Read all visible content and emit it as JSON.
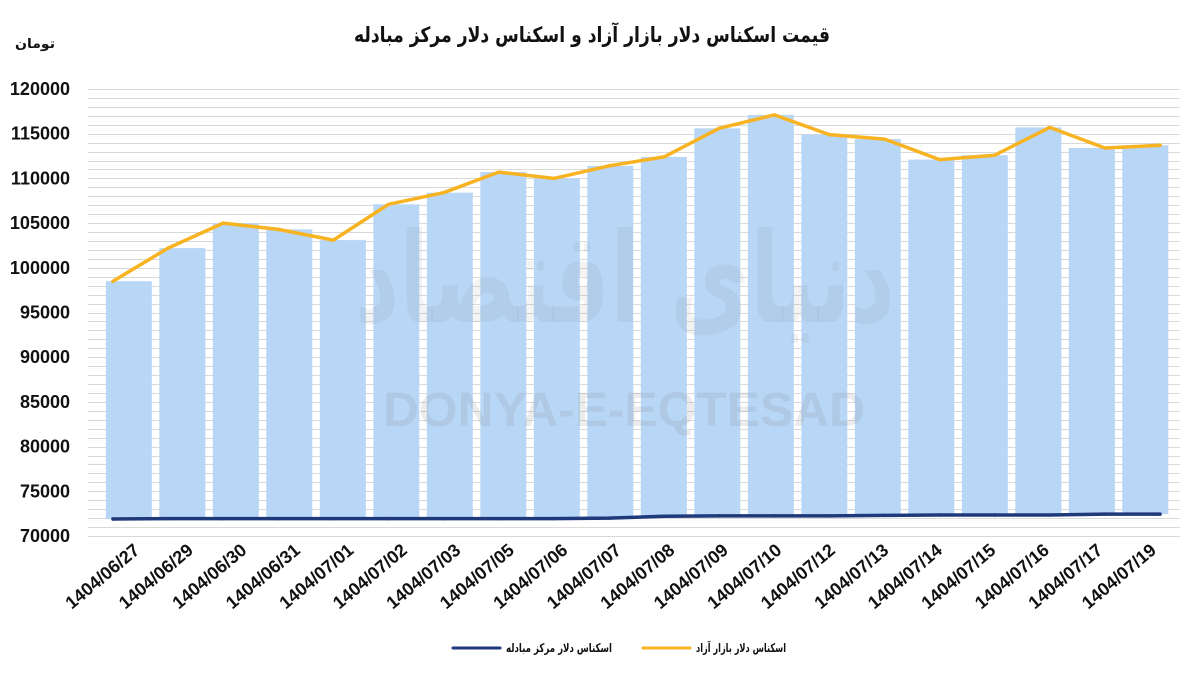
{
  "chart_data": {
    "type": "bar",
    "title": "قیمت اسکناس دلار بازار آزاد و اسکناس دلار مرکز مبادله",
    "ylabel": "تومان",
    "categories": [
      "1404/06/27",
      "1404/06/29",
      "1404/06/30",
      "1404/06/31",
      "1404/07/01",
      "1404/07/02",
      "1404/07/03",
      "1404/07/05",
      "1404/07/06",
      "1404/07/07",
      "1404/07/08",
      "1404/07/09",
      "1404/07/10",
      "1404/07/12",
      "1404/07/13",
      "1404/07/14",
      "1404/07/15",
      "1404/07/16",
      "1404/07/17",
      "1404/07/19"
    ],
    "ylim": [
      70000,
      120000
    ],
    "yticks": [
      70000,
      75000,
      80000,
      85000,
      90000,
      95000,
      100000,
      105000,
      110000,
      115000,
      120000
    ],
    "grid": true,
    "legend_position": "bottom",
    "bars": {
      "type": "floating-bar",
      "color": "#B8D6F6",
      "low": [
        71900,
        71950,
        71950,
        71950,
        71950,
        71950,
        71950,
        71950,
        71950,
        72000,
        72200,
        72250,
        72250,
        72250,
        72300,
        72350,
        72350,
        72350,
        72450,
        72450
      ],
      "high": [
        98500,
        102200,
        105000,
        104300,
        103100,
        107100,
        108400,
        110700,
        110000,
        111400,
        112400,
        115600,
        117100,
        114900,
        114400,
        112100,
        112600,
        115700,
        113400,
        113700
      ]
    },
    "series": [
      {
        "name": "اسکناس دلار مرکز مبادله",
        "type": "line",
        "color": "#1F3A7A",
        "values": [
          71900,
          71950,
          71950,
          71950,
          71950,
          71950,
          71950,
          71950,
          71950,
          72000,
          72200,
          72250,
          72250,
          72250,
          72300,
          72350,
          72350,
          72350,
          72450,
          72450
        ]
      },
      {
        "name": "اسکناس دلار بازار آزاد",
        "type": "line",
        "color": "#F7B322",
        "values": [
          98500,
          102200,
          105000,
          104300,
          103100,
          107100,
          108400,
          110700,
          110000,
          111400,
          112400,
          115600,
          117100,
          114900,
          114400,
          112100,
          112600,
          115700,
          113400,
          113700
        ]
      }
    ]
  },
  "watermark": {
    "persian": "دنیای اقتصاد",
    "latin": "DONYA-E-EQTESAD"
  }
}
